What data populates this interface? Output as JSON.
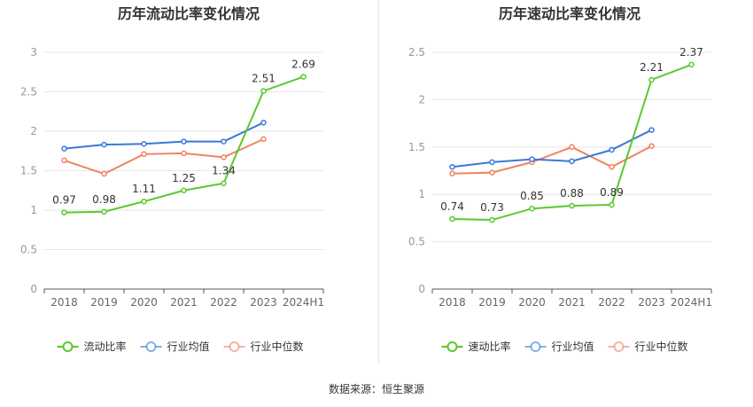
{
  "source_text": "数据来源：恒生聚源",
  "colors": {
    "main": "#5ac82f",
    "avg": "#3b78d8",
    "median": "#f0825f",
    "grid": "#e6e6e6",
    "axis": "#999999"
  },
  "chart_data": [
    {
      "type": "line",
      "title": "历年流动比率变化情况",
      "categories": [
        "2018",
        "2019",
        "2020",
        "2021",
        "2022",
        "2023",
        "2024H1"
      ],
      "ylim": [
        0,
        3
      ],
      "yticks": [
        "0",
        "0.5",
        "1",
        "1.5",
        "2",
        "2.5",
        "3"
      ],
      "legend_position": "bottom",
      "grid": true,
      "series": [
        {
          "name": "流动比率",
          "values": [
            0.97,
            0.98,
            1.11,
            1.25,
            1.34,
            2.51,
            2.69
          ],
          "labels": [
            "0.97",
            "0.98",
            "1.11",
            "1.25",
            "1.34",
            "2.51",
            "2.69"
          ]
        },
        {
          "name": "行业均值",
          "values": [
            1.78,
            1.83,
            1.84,
            1.87,
            1.87,
            2.11,
            null
          ]
        },
        {
          "name": "行业中位数",
          "values": [
            1.63,
            1.46,
            1.71,
            1.72,
            1.67,
            1.9,
            null
          ]
        }
      ]
    },
    {
      "type": "line",
      "title": "历年速动比率变化情况",
      "categories": [
        "2018",
        "2019",
        "2020",
        "2021",
        "2022",
        "2023",
        "2024H1"
      ],
      "ylim": [
        0,
        2.5
      ],
      "yticks": [
        "0",
        "0.5",
        "1",
        "1.5",
        "2",
        "2.5"
      ],
      "legend_position": "bottom",
      "grid": true,
      "series": [
        {
          "name": "速动比率",
          "values": [
            0.74,
            0.73,
            0.85,
            0.88,
            0.89,
            2.21,
            2.37
          ],
          "labels": [
            "0.74",
            "0.73",
            "0.85",
            "0.88",
            "0.89",
            "2.21",
            "2.37"
          ]
        },
        {
          "name": "行业均值",
          "values": [
            1.29,
            1.34,
            1.37,
            1.35,
            1.47,
            1.68,
            null
          ]
        },
        {
          "name": "行业中位数",
          "values": [
            1.22,
            1.23,
            1.34,
            1.5,
            1.29,
            1.51,
            null
          ]
        }
      ]
    }
  ]
}
